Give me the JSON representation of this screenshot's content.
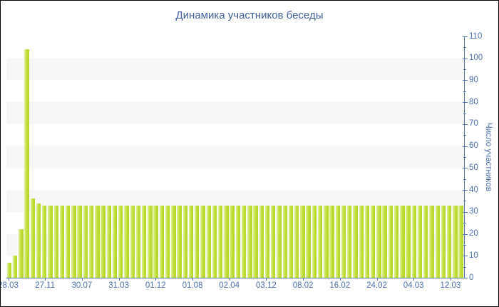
{
  "window": {
    "background": "#ffffff",
    "border_color": "#000000"
  },
  "chart_data": {
    "type": "bar",
    "title": "Динамика участников беседы",
    "xlabel": "",
    "ylabel": "Число участников",
    "ylim": [
      0,
      110
    ],
    "y_tick_step": 10,
    "y_minor_tick_step": 5,
    "axis_side": "right",
    "legend_position": "none",
    "grid": "alternating horizontal bands every 10 units",
    "x_tick_labels": [
      "28.03",
      "27.11",
      "30.07",
      "31.03",
      "01.12",
      "01.08",
      "02.04",
      "03.12",
      "08.02",
      "16.02",
      "24.02",
      "04.03",
      "12.03"
    ],
    "values": [
      7,
      10,
      22,
      104,
      36,
      34,
      33,
      33,
      33,
      33,
      33,
      33,
      33,
      33,
      33,
      33,
      33,
      33,
      33,
      33,
      33,
      33,
      33,
      33,
      33,
      33,
      33,
      33,
      33,
      33,
      33,
      33,
      33,
      33,
      33,
      33,
      33,
      33,
      33,
      33,
      33,
      33,
      33,
      33,
      33,
      33,
      33,
      33,
      33,
      33,
      33,
      33,
      33,
      33,
      33,
      33,
      33,
      33,
      33,
      33,
      33,
      33,
      33,
      33,
      33,
      33,
      33,
      33,
      33,
      33,
      33,
      33,
      33,
      33,
      33,
      33,
      33,
      33
    ],
    "colors": {
      "bar_main": "#bcdc30",
      "bar_highlight": "#e3f0a4",
      "band_gray": "#f7f7f7",
      "axis_line": "#5878ab",
      "tick_label": "#4c70ae",
      "title": "#44619e"
    }
  }
}
